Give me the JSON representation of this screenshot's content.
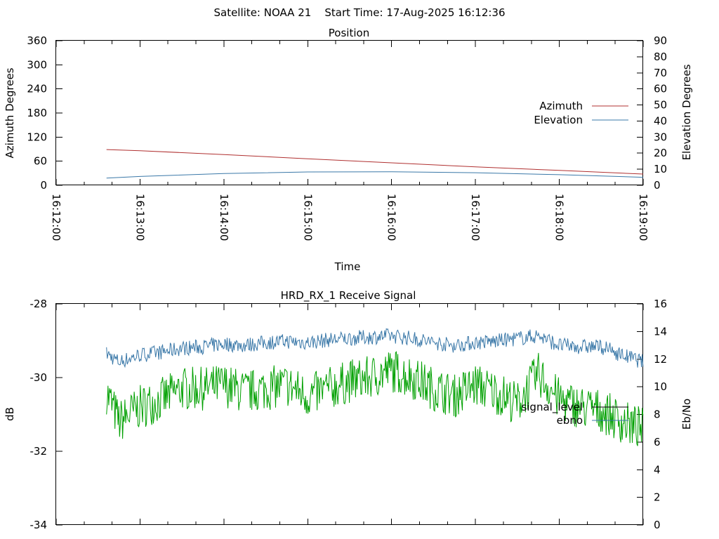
{
  "header": {
    "title": "Satellite: NOAA 21    Start Time: 17-Aug-2025 16:12:36"
  },
  "chart_data": [
    {
      "type": "line",
      "title": "Position",
      "xlabel": "Time",
      "ylabel": "Azimuth Degrees",
      "y2label": "Elevation Degrees",
      "xlim": [
        "16:12:00",
        "16:19:00"
      ],
      "x_ticks": [
        "16:12:00",
        "16:13:00",
        "16:14:00",
        "16:15:00",
        "16:16:00",
        "16:17:00",
        "16:18:00",
        "16:19:00"
      ],
      "ylim": [
        0,
        360
      ],
      "y_ticks": [
        "0",
        "60",
        "120",
        "180",
        "240",
        "300",
        "360"
      ],
      "y2lim": [
        0,
        90
      ],
      "y2_ticks": [
        "0",
        "10",
        "20",
        "30",
        "40",
        "50",
        "60",
        "70",
        "80",
        "90"
      ],
      "legend_position": "right",
      "colors": {
        "azimuth": "#b03030",
        "elevation": "#3a78a8"
      },
      "series": [
        {
          "name": "Azimuth",
          "axis": "left",
          "x": [
            "16:12:36",
            "16:13:00",
            "16:14:00",
            "16:15:00",
            "16:16:00",
            "16:17:00",
            "16:18:00",
            "16:19:00"
          ],
          "y": [
            89,
            86,
            76.5,
            66,
            56,
            46,
            37,
            28
          ]
        },
        {
          "name": "Elevation",
          "axis": "right",
          "x": [
            "16:12:36",
            "16:13:00",
            "16:14:00",
            "16:15:00",
            "16:16:00",
            "16:17:00",
            "16:18:00",
            "16:19:00"
          ],
          "y": [
            4.5,
            5.5,
            7.3,
            8.3,
            8.4,
            7.8,
            6.6,
            5
          ]
        }
      ]
    },
    {
      "type": "line",
      "title": "HRD_RX_1 Receive Signal",
      "ylabel": "dB",
      "y2label": "Eb/No",
      "xlim": [
        "16:12:00",
        "16:19:00"
      ],
      "ylim": [
        -34,
        -28
      ],
      "y_ticks": [
        "-28",
        "-30",
        "-32",
        "-34"
      ],
      "y2lim": [
        0,
        16
      ],
      "y2_ticks": [
        "0",
        "2",
        "4",
        "6",
        "8",
        "10",
        "12",
        "14",
        "16"
      ],
      "legend_position": "right",
      "colors": {
        "signal_level": "#000000",
        "ebno": "#3a78a8",
        "trace": "#00a000"
      },
      "series": [
        {
          "name": "signal_level",
          "axis": "left",
          "x": [
            "16:12:36",
            "16:12:45",
            "16:13:00",
            "16:13:15",
            "16:13:30",
            "16:13:45",
            "16:14:00",
            "16:14:15",
            "16:14:30",
            "16:14:45",
            "16:15:00",
            "16:15:15",
            "16:15:30",
            "16:15:45",
            "16:16:00",
            "16:16:15",
            "16:16:30",
            "16:16:45",
            "16:17:00",
            "16:17:15",
            "16:17:30",
            "16:17:45",
            "16:18:00",
            "16:18:15",
            "16:18:30",
            "16:18:45",
            "16:19:00"
          ],
          "y": [
            -30.4,
            -31.2,
            -30.8,
            -30.6,
            -30.3,
            -30.3,
            -30.2,
            -30.4,
            -30.3,
            -30.2,
            -30.5,
            -30.3,
            -30.1,
            -30.0,
            -29.8,
            -30.0,
            -30.3,
            -30.5,
            -30.2,
            -30.4,
            -30.7,
            -29.9,
            -30.6,
            -30.8,
            -30.9,
            -31.2,
            -31.4
          ]
        },
        {
          "name": "ebno",
          "axis": "right",
          "x": [
            "16:12:36",
            "16:12:45",
            "16:13:00",
            "16:13:15",
            "16:13:30",
            "16:13:45",
            "16:14:00",
            "16:14:15",
            "16:14:30",
            "16:14:45",
            "16:15:00",
            "16:15:15",
            "16:15:30",
            "16:15:45",
            "16:16:00",
            "16:16:15",
            "16:16:30",
            "16:16:45",
            "16:17:00",
            "16:17:15",
            "16:17:30",
            "16:17:45",
            "16:18:00",
            "16:18:15",
            "16:18:30",
            "16:18:45",
            "16:19:00"
          ],
          "y": [
            12.4,
            11.8,
            12.3,
            12.5,
            12.8,
            12.9,
            13.1,
            13.0,
            13.2,
            13.3,
            13.2,
            13.4,
            13.5,
            13.6,
            13.7,
            13.5,
            13.2,
            13.0,
            13.2,
            13.3,
            13.5,
            13.7,
            13.0,
            12.9,
            12.9,
            12.3,
            11.8
          ]
        }
      ]
    }
  ]
}
